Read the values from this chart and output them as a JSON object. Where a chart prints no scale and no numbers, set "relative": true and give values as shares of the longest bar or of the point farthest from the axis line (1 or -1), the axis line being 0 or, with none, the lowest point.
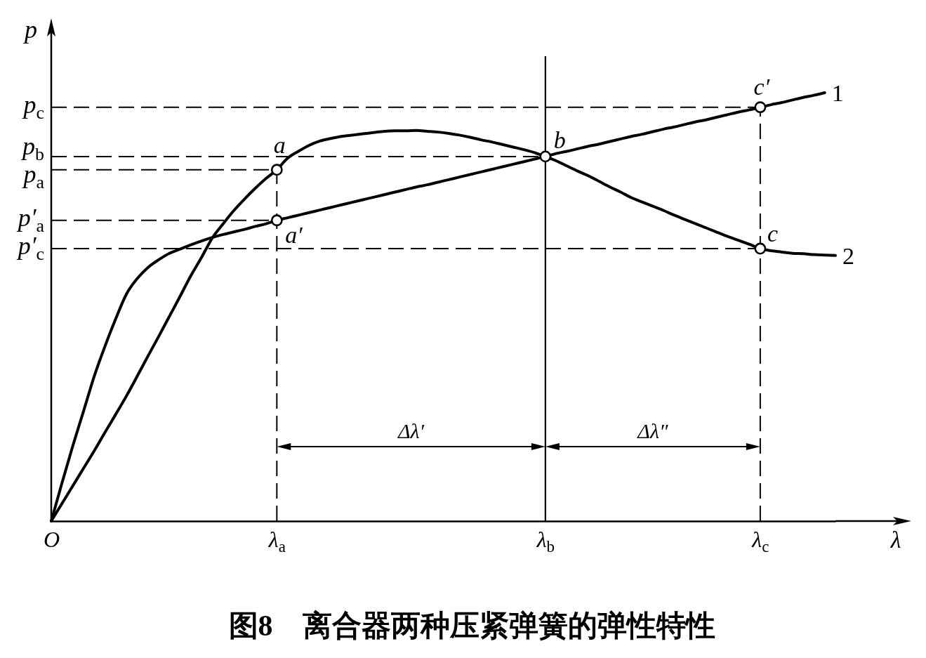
{
  "chart_data": {
    "type": "line",
    "relative": true,
    "title": "图8　离合器两种压紧弹簧的弹性特性",
    "xlabel": "λ",
    "ylabel": "p",
    "categories": [
      "O",
      null,
      null,
      null,
      null,
      null,
      null,
      null,
      null,
      null,
      null,
      null,
      null,
      null,
      null,
      null,
      null,
      null,
      null,
      null,
      null,
      "λ$_{a}$",
      null,
      null,
      null,
      null,
      null,
      null,
      null,
      null,
      null,
      null,
      null,
      null,
      null,
      null,
      null,
      null,
      null,
      null,
      null,
      null,
      null,
      null,
      null,
      null,
      "λ$_{b}$",
      null,
      null,
      null,
      null,
      null,
      null,
      null,
      null,
      null,
      null,
      null,
      null,
      null,
      null,
      null,
      null,
      null,
      null,
      null,
      "λ$_{c}$",
      null,
      null,
      null,
      null,
      null,
      null,
      null
    ],
    "series": [
      {
        "name": "1",
        "color": "#000000",
        "values": [
          0,
          0.089,
          0.175,
          0.256,
          0.338,
          0.408,
          0.472,
          0.53,
          0.566,
          0.592,
          0.61,
          0.625,
          0.635,
          0.645,
          0.654,
          0.662,
          0.669,
          0.675,
          0.681,
          0.688,
          0.694,
          0.702,
          0.708,
          0.714,
          0.72,
          0.726,
          0.732,
          0.738,
          0.744,
          0.75,
          0.756,
          0.762,
          0.768,
          0.774,
          0.78,
          0.785,
          0.791,
          0.797,
          0.803,
          0.809,
          0.815,
          0.821,
          0.827,
          0.833,
          0.839,
          0.845,
          0.851,
          0.858,
          0.863,
          0.869,
          0.875,
          0.88,
          0.886,
          0.892,
          0.898,
          0.903,
          0.909,
          0.915,
          0.92,
          0.926,
          0.932,
          0.937,
          0.943,
          0.949,
          0.955,
          0.96,
          0.966,
          0.972,
          0.977,
          0.983,
          0.989,
          0.994,
          1.0,
          null
        ]
      },
      {
        "name": "2",
        "color": "#000000",
        "values": [
          0,
          0.041,
          0.082,
          0.123,
          0.164,
          0.207,
          0.249,
          0.292,
          0.338,
          0.385,
          0.431,
          0.478,
          0.525,
          0.573,
          0.616,
          0.661,
          0.694,
          0.725,
          0.752,
          0.777,
          0.8,
          0.82,
          0.847,
          0.863,
          0.877,
          0.887,
          0.893,
          0.898,
          0.901,
          0.904,
          0.907,
          0.91,
          0.911,
          0.911,
          0.912,
          0.91,
          0.908,
          0.905,
          0.901,
          0.896,
          0.89,
          0.885,
          0.879,
          0.873,
          0.867,
          0.86,
          0.851,
          0.841,
          0.829,
          0.817,
          0.806,
          0.793,
          0.78,
          0.768,
          0.755,
          0.745,
          0.735,
          0.725,
          0.714,
          0.704,
          0.694,
          0.684,
          0.674,
          0.664,
          0.655,
          0.646,
          0.636,
          0.631,
          0.628,
          0.625,
          0.624,
          0.622,
          0.621,
          0.62
        ]
      },
      {
        "type": "scatter",
        "color": "#000000",
        "marker": "circle",
        "x": [
          "λ$_{a}$",
          "λ$_{a}$",
          "λ$_{b}$",
          "λ$_{c}$",
          "λ$_{c}$"
        ],
        "values": [
          0.82,
          0.702,
          0.851,
          0.636,
          0.966
        ]
      }
    ],
    "ref_lines": [
      {
        "axis": "y",
        "value": 0.966,
        "label": "p$_{c}$",
        "line_style": "dashed"
      },
      {
        "axis": "y",
        "value": 0.851,
        "label": "p$_{b}$",
        "line_style": "dashed"
      },
      {
        "axis": "y",
        "value": 0.82,
        "label": "p$_{a}$",
        "line_style": "dashed"
      },
      {
        "axis": "y",
        "value": 0.702,
        "label": "p′$_{a}$",
        "line_style": "dashed"
      },
      {
        "axis": "y",
        "value": 0.636,
        "label": "p′$_{c}$",
        "line_style": "dashed"
      },
      {
        "axis": "x",
        "value": "λ$_{a}$",
        "line_style": "dashed"
      },
      {
        "axis": "x",
        "value": "λ$_{b}$",
        "line_style": "solid"
      },
      {
        "axis": "x",
        "value": "λ$_{c}$",
        "line_style": "dashed"
      }
    ],
    "annotations": [
      "Δλ′",
      "Δλ″",
      {
        "text": "a",
        "x": "λ$_{a}$",
        "y": 0.82
      },
      {
        "text": "a′",
        "x": "λ$_{a}$",
        "y": 0.702
      },
      {
        "text": "b",
        "x": "λ$_{b}$",
        "y": 0.851
      },
      {
        "text": "c",
        "x": "λ$_{c}$",
        "y": 0.636
      },
      {
        "text": "c′",
        "x": "λ$_{c}$",
        "y": 0.966
      }
    ]
  }
}
